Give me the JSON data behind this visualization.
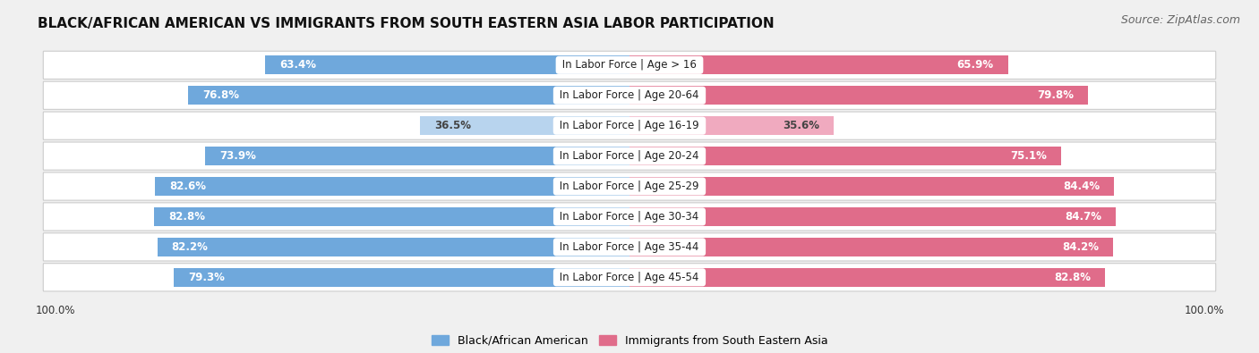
{
  "title": "BLACK/AFRICAN AMERICAN VS IMMIGRANTS FROM SOUTH EASTERN ASIA LABOR PARTICIPATION",
  "source": "Source: ZipAtlas.com",
  "categories": [
    "In Labor Force | Age > 16",
    "In Labor Force | Age 20-64",
    "In Labor Force | Age 16-19",
    "In Labor Force | Age 20-24",
    "In Labor Force | Age 25-29",
    "In Labor Force | Age 30-34",
    "In Labor Force | Age 35-44",
    "In Labor Force | Age 45-54"
  ],
  "black_values": [
    63.4,
    76.8,
    36.5,
    73.9,
    82.6,
    82.8,
    82.2,
    79.3
  ],
  "immigrant_values": [
    65.9,
    79.8,
    35.6,
    75.1,
    84.4,
    84.7,
    84.2,
    82.8
  ],
  "blue_color": "#6FA8DC",
  "pink_color": "#E06C8A",
  "blue_light": "#B8D4EE",
  "pink_light": "#F0AABF",
  "bg_color": "#F0F0F0",
  "title_fontsize": 11,
  "source_fontsize": 9,
  "label_fontsize": 8.5,
  "value_fontsize": 8.5,
  "legend_fontsize": 9,
  "axis_label_fontsize": 8.5,
  "max_value": 100.0
}
